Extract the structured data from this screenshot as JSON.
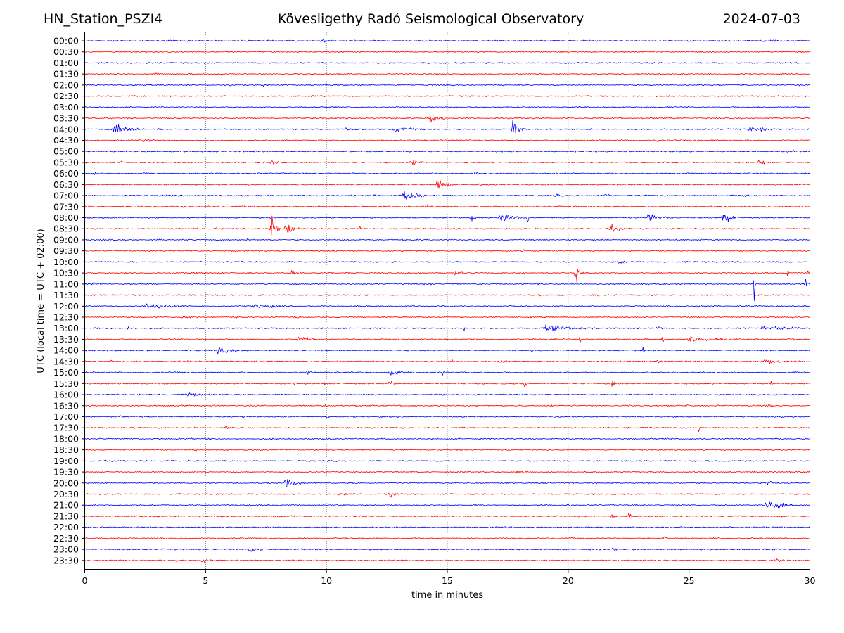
{
  "header": {
    "station": "HN_Station_PSZI4",
    "observatory": "Kövesligethy Radó Seismological Observatory",
    "date": "2024-07-03"
  },
  "chart_data": {
    "type": "line",
    "title": "Kövesligethy Radó Seismological Observatory",
    "xlabel": "time in minutes",
    "ylabel": "UTC (local time = UTC + 02:00)",
    "xlim": [
      0,
      30
    ],
    "xticks": [
      "0",
      "5",
      "10",
      "15",
      "20",
      "25",
      "30"
    ],
    "xtick_values": [
      0,
      5,
      10,
      15,
      20,
      25,
      30
    ],
    "grid": "vertical dotted at x ticks",
    "colors": {
      "even_hour": "#0000ff",
      "half_hour": "#ff0000",
      "grid": "#555555"
    },
    "series": [
      {
        "label": "00:00",
        "events": [
          [
            9.8,
            0.35,
            0.4
          ],
          [
            28,
            0.15,
            2
          ]
        ]
      },
      {
        "label": "00:30",
        "events": []
      },
      {
        "label": "01:00",
        "events": []
      },
      {
        "label": "01:30",
        "events": [
          [
            2.8,
            0.25,
            0.6
          ],
          [
            4.4,
            0.15,
            0.2
          ]
        ]
      },
      {
        "label": "02:00",
        "events": [
          [
            7.4,
            0.3,
            0.1
          ],
          [
            23.5,
            0.15,
            0.4
          ]
        ]
      },
      {
        "label": "02:30",
        "events": []
      },
      {
        "label": "03:00",
        "events": []
      },
      {
        "label": "03:30",
        "events": [
          [
            14.3,
            0.45,
            0.7
          ],
          [
            24.4,
            0.15,
            0.5
          ]
        ]
      },
      {
        "label": "04:00",
        "events": [
          [
            1.2,
            0.7,
            1.0
          ],
          [
            3.1,
            0.3,
            0.1
          ],
          [
            10.8,
            0.2,
            1.2
          ],
          [
            12.8,
            0.3,
            1.5
          ],
          [
            17.7,
            1.1,
            0.5
          ],
          [
            27.5,
            0.3,
            1.2
          ]
        ]
      },
      {
        "label": "04:30",
        "events": [
          [
            2.4,
            0.3,
            0.5
          ],
          [
            23.7,
            0.3,
            0.1
          ],
          [
            25.0,
            0.15,
            0.8
          ]
        ]
      },
      {
        "label": "05:00",
        "events": [
          [
            7.0,
            0.15,
            0.5
          ],
          [
            13.4,
            0.15,
            0.4
          ],
          [
            21.2,
            0.25,
            0.1
          ],
          [
            29.3,
            0.15,
            0.4
          ]
        ]
      },
      {
        "label": "05:30",
        "events": [
          [
            1.4,
            0.2,
            0.3
          ],
          [
            7.7,
            0.3,
            0.6
          ],
          [
            13.5,
            0.35,
            0.8
          ],
          [
            27.9,
            0.5,
            0.3
          ],
          [
            29.0,
            0.15,
            0.4
          ]
        ]
      },
      {
        "label": "06:00",
        "events": [
          [
            0.4,
            0.3,
            0.1
          ],
          [
            16.1,
            0.25,
            0.4
          ],
          [
            28.6,
            0.2,
            0.2
          ]
        ]
      },
      {
        "label": "06:30",
        "events": [
          [
            14.6,
            0.8,
            0.5
          ],
          [
            16.3,
            0.3,
            0.2
          ],
          [
            22.0,
            0.15,
            0.3
          ]
        ]
      },
      {
        "label": "07:00",
        "events": [
          [
            12.0,
            0.3,
            0.1
          ],
          [
            13.2,
            0.7,
            0.8
          ],
          [
            19.5,
            0.2,
            0.3
          ],
          [
            21.5,
            0.2,
            0.5
          ],
          [
            27.3,
            0.15,
            0.6
          ]
        ]
      },
      {
        "label": "07:30",
        "events": [
          [
            14.2,
            0.3,
            0.1
          ]
        ]
      },
      {
        "label": "08:00",
        "events": [
          [
            16.0,
            0.5,
            0.3
          ],
          [
            17.2,
            0.5,
            0.9
          ],
          [
            18.3,
            0.8,
            0.1
          ],
          [
            23.3,
            0.5,
            0.8
          ],
          [
            26.4,
            0.7,
            0.6
          ]
        ]
      },
      {
        "label": "08:30",
        "events": [
          [
            5.4,
            0.3,
            0.1
          ],
          [
            7.7,
            1.6,
            0.3
          ],
          [
            8.3,
            0.6,
            0.6
          ],
          [
            11.4,
            0.4,
            0.1
          ],
          [
            19.1,
            0.3,
            0.1
          ],
          [
            21.7,
            0.4,
            0.8
          ]
        ]
      },
      {
        "label": "09:00",
        "events": [
          [
            6.7,
            0.25,
            0.1
          ],
          [
            13.1,
            0.25,
            0.1
          ]
        ]
      },
      {
        "label": "09:30",
        "events": [
          [
            8.7,
            0.2,
            0.1
          ],
          [
            10.3,
            0.3,
            0.5
          ],
          [
            18.1,
            0.3,
            0.2
          ]
        ]
      },
      {
        "label": "10:00",
        "events": [
          [
            22.0,
            0.15,
            2.5
          ]
        ]
      },
      {
        "label": "10:30",
        "events": [
          [
            8.5,
            0.3,
            0.8
          ],
          [
            15.3,
            0.3,
            0.4
          ],
          [
            20.3,
            1.0,
            0.3
          ],
          [
            29.1,
            0.6,
            0.1
          ],
          [
            29.9,
            0.5,
            0.2
          ]
        ]
      },
      {
        "label": "11:00",
        "events": [
          [
            0.4,
            0.3,
            0.3
          ],
          [
            14.3,
            0.3,
            0.1
          ],
          [
            18.7,
            0.4,
            0.1
          ],
          [
            27.7,
            1.8,
            0.1
          ],
          [
            29.8,
            0.5,
            0.3
          ]
        ]
      },
      {
        "label": "11:30",
        "events": [
          [
            10.0,
            0.4,
            0.1
          ],
          [
            18.8,
            0.3,
            0.1
          ],
          [
            21.0,
            0.15,
            1.0
          ]
        ]
      },
      {
        "label": "12:00",
        "events": [
          [
            2.5,
            0.3,
            2.5
          ],
          [
            7.0,
            0.25,
            1.8
          ],
          [
            25.5,
            0.8,
            0.1
          ]
        ]
      },
      {
        "label": "12:30",
        "events": [
          [
            4.0,
            0.2,
            1.0
          ],
          [
            8.7,
            0.3,
            0.2
          ],
          [
            15.0,
            0.2,
            0.1
          ]
        ]
      },
      {
        "label": "13:00",
        "events": [
          [
            1.8,
            0.2,
            0.2
          ],
          [
            15.7,
            0.5,
            0.1
          ],
          [
            19.0,
            0.3,
            3.0
          ],
          [
            23.7,
            0.5,
            0.2
          ],
          [
            28.0,
            0.3,
            2.0
          ]
        ]
      },
      {
        "label": "13:30",
        "events": [
          [
            6.7,
            0.2,
            0.1
          ],
          [
            8.8,
            0.4,
            0.9
          ],
          [
            20.5,
            0.6,
            0.1
          ],
          [
            23.9,
            0.6,
            0.1
          ],
          [
            25.0,
            0.35,
            1.8
          ],
          [
            29.3,
            0.5,
            0.1
          ]
        ]
      },
      {
        "label": "14:00",
        "events": [
          [
            5.5,
            0.3,
            1.5
          ],
          [
            9.7,
            0.2,
            0.3
          ],
          [
            18.5,
            0.25,
            0.1
          ],
          [
            23.1,
            0.5,
            0.1
          ],
          [
            28.0,
            0.3,
            0.2
          ]
        ]
      },
      {
        "label": "14:30",
        "events": [
          [
            1.1,
            0.35,
            0.1
          ],
          [
            4.3,
            0.45,
            0.1
          ],
          [
            15.2,
            0.7,
            0.1
          ],
          [
            17.2,
            0.2,
            0.5
          ],
          [
            23.7,
            0.5,
            0.1
          ],
          [
            28.0,
            0.3,
            2.0
          ]
        ]
      },
      {
        "label": "15:00",
        "events": [
          [
            9.2,
            0.3,
            0.3
          ],
          [
            12.5,
            0.3,
            1.3
          ],
          [
            14.8,
            1.0,
            0.1
          ]
        ]
      },
      {
        "label": "15:30",
        "events": [
          [
            8.7,
            0.3,
            0.1
          ],
          [
            9.9,
            0.3,
            0.2
          ],
          [
            12.6,
            0.7,
            0.2
          ],
          [
            18.2,
            1.2,
            0.1
          ],
          [
            21.8,
            0.5,
            0.4
          ],
          [
            28.4,
            0.3,
            0.1
          ]
        ]
      },
      {
        "label": "16:00",
        "events": [
          [
            4.2,
            0.25,
            1.0
          ],
          [
            14.8,
            0.2,
            0.2
          ],
          [
            26.5,
            0.15,
            0.3
          ]
        ]
      },
      {
        "label": "16:30",
        "events": [
          [
            10.0,
            0.3,
            0.1
          ],
          [
            19.3,
            0.3,
            0.1
          ],
          [
            24.9,
            0.25,
            0.3
          ],
          [
            28.3,
            0.35,
            0.2
          ]
        ]
      },
      {
        "label": "17:00",
        "events": [
          [
            1.4,
            0.3,
            0.2
          ],
          [
            6.6,
            0.5,
            0.1
          ],
          [
            10.0,
            0.15,
            0.8
          ]
        ]
      },
      {
        "label": "17:30",
        "events": [
          [
            5.8,
            0.2,
            0.8
          ],
          [
            25.4,
            0.5,
            0.1
          ]
        ]
      },
      {
        "label": "18:00",
        "events": [
          [
            24.2,
            0.15,
            0.4
          ],
          [
            28.8,
            0.15,
            0.2
          ]
        ]
      },
      {
        "label": "18:30",
        "events": [
          [
            4.6,
            0.25,
            0.1
          ],
          [
            6.2,
            0.15,
            0.1
          ],
          [
            11.0,
            0.2,
            0.1
          ]
        ]
      },
      {
        "label": "19:00",
        "events": []
      },
      {
        "label": "19:30",
        "events": [
          [
            17.8,
            0.3,
            0.8
          ]
        ]
      },
      {
        "label": "20:00",
        "events": [
          [
            8.3,
            0.45,
            0.8
          ],
          [
            28.2,
            0.4,
            0.5
          ]
        ]
      },
      {
        "label": "20:30",
        "events": [
          [
            10.5,
            0.15,
            1.5
          ],
          [
            12.6,
            0.3,
            0.6
          ]
        ]
      },
      {
        "label": "21:00",
        "events": [
          [
            20.0,
            0.15,
            0.6
          ],
          [
            28.2,
            0.6,
            1.3
          ]
        ]
      },
      {
        "label": "21:30",
        "events": [
          [
            21.8,
            0.3,
            0.4
          ],
          [
            22.5,
            0.4,
            0.2
          ]
        ]
      },
      {
        "label": "22:00",
        "events": [
          [
            0.5,
            0.2,
            0.1
          ],
          [
            3.5,
            0.25,
            0.3
          ],
          [
            23.5,
            0.15,
            0.3
          ]
        ]
      },
      {
        "label": "22:30",
        "events": [
          [
            10.8,
            0.2,
            0.1
          ],
          [
            11.5,
            0.25,
            0.1
          ],
          [
            24.0,
            0.25,
            0.2
          ]
        ]
      },
      {
        "label": "23:00",
        "events": [
          [
            6.8,
            0.35,
            0.9
          ],
          [
            18.5,
            0.2,
            0.3
          ],
          [
            21.8,
            0.35,
            0.4
          ]
        ]
      },
      {
        "label": "23:30",
        "events": [
          [
            3.8,
            0.3,
            0.1
          ],
          [
            4.8,
            0.3,
            0.7
          ],
          [
            28.6,
            0.25,
            0.3
          ]
        ]
      }
    ]
  }
}
